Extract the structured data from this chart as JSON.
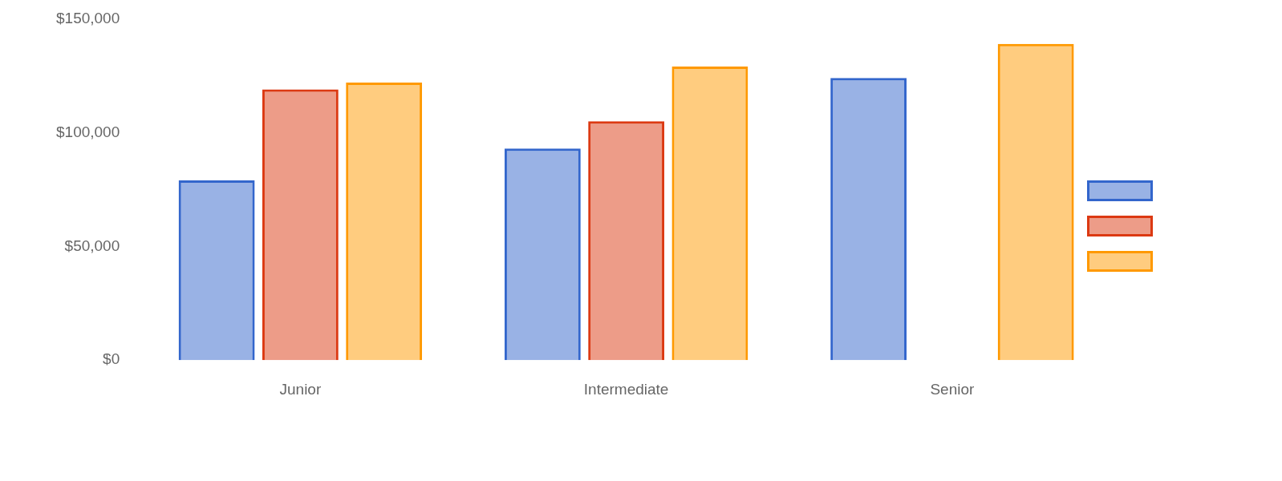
{
  "chart_data": {
    "type": "bar",
    "categories": [
      "Junior",
      "Intermediate",
      "Senior"
    ],
    "series": [
      {
        "color": "#3366cc",
        "values": [
          79000,
          93000,
          124000
        ]
      },
      {
        "color": "#dc3912",
        "values": [
          119000,
          105000,
          null
        ]
      },
      {
        "color": "#ff9900",
        "values": [
          122000,
          129000,
          139000
        ]
      }
    ],
    "ylim": [
      0,
      150000
    ],
    "yticks": [
      {
        "value": 0,
        "label": "$0"
      },
      {
        "value": 50000,
        "label": "$50,000"
      },
      {
        "value": 100000,
        "label": "$100,000"
      },
      {
        "value": 150000,
        "label": "$150,000"
      }
    ],
    "grid": false
  }
}
